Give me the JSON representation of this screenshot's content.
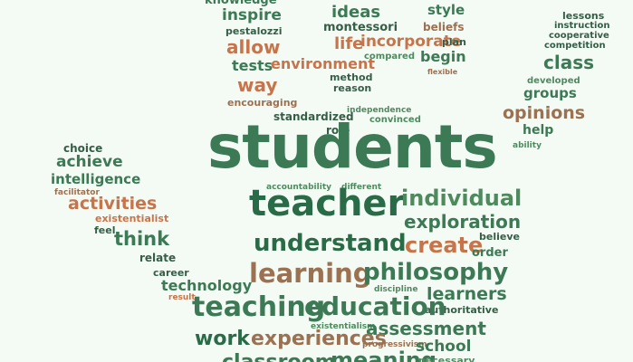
{
  "colors": {
    "background": "#f4fbf5",
    "green": "#3c7a55",
    "deep_green": "#2a6b47",
    "orange": "#c8744a",
    "brown": "#9b7152"
  },
  "words": {
    "knowledge": "knowledge",
    "inspire": "inspire",
    "pestalozzi": "pestalozzi",
    "allow": "allow",
    "tests": "tests",
    "environment": "environment",
    "way": "way",
    "encouraging": "encouraging",
    "standardized": "standardized",
    "ideas": "ideas",
    "montessori": "montessori",
    "life": "life",
    "incorporate": "incorporate",
    "compared": "compared",
    "method": "method",
    "reason": "reason",
    "style": "style",
    "beliefs": "beliefs",
    "plan": "plan",
    "begin": "begin",
    "flexible": "flexible",
    "lessons": "lessons",
    "instruction": "instruction",
    "cooperative": "cooperative",
    "competition": "competition",
    "class": "class",
    "developed": "developed",
    "groups": "groups",
    "opinions": "opinions",
    "help": "help",
    "ability": "ability",
    "independence": "independence",
    "convinced": "convinced",
    "role": "role",
    "students": "students",
    "choice": "choice",
    "achieve": "achieve",
    "intelligence": "intelligence",
    "facilitator": "facilitator",
    "activities": "activities",
    "existentialist": "existentialist",
    "feel": "feel",
    "think": "think",
    "relate": "relate",
    "career": "career",
    "technology": "technology",
    "result": "result",
    "accountability": "accountability",
    "different": "different",
    "teacher": "teacher",
    "individual": "individual",
    "exploration": "exploration",
    "understand": "understand",
    "create": "create",
    "believe": "believe",
    "order": "order",
    "learning": "learning",
    "philosophy": "philosophy",
    "discipline": "discipline",
    "learners": "learners",
    "authoritative": "authoritative",
    "teaching": "teaching",
    "education": "education",
    "existentialism": "existentialism",
    "assessment": "assessment",
    "work": "work",
    "experiences": "experiences",
    "progressivism": "progressivism",
    "school": "school",
    "classroom": "classroom",
    "meaning": "meaning",
    "necessary": "necessary"
  }
}
